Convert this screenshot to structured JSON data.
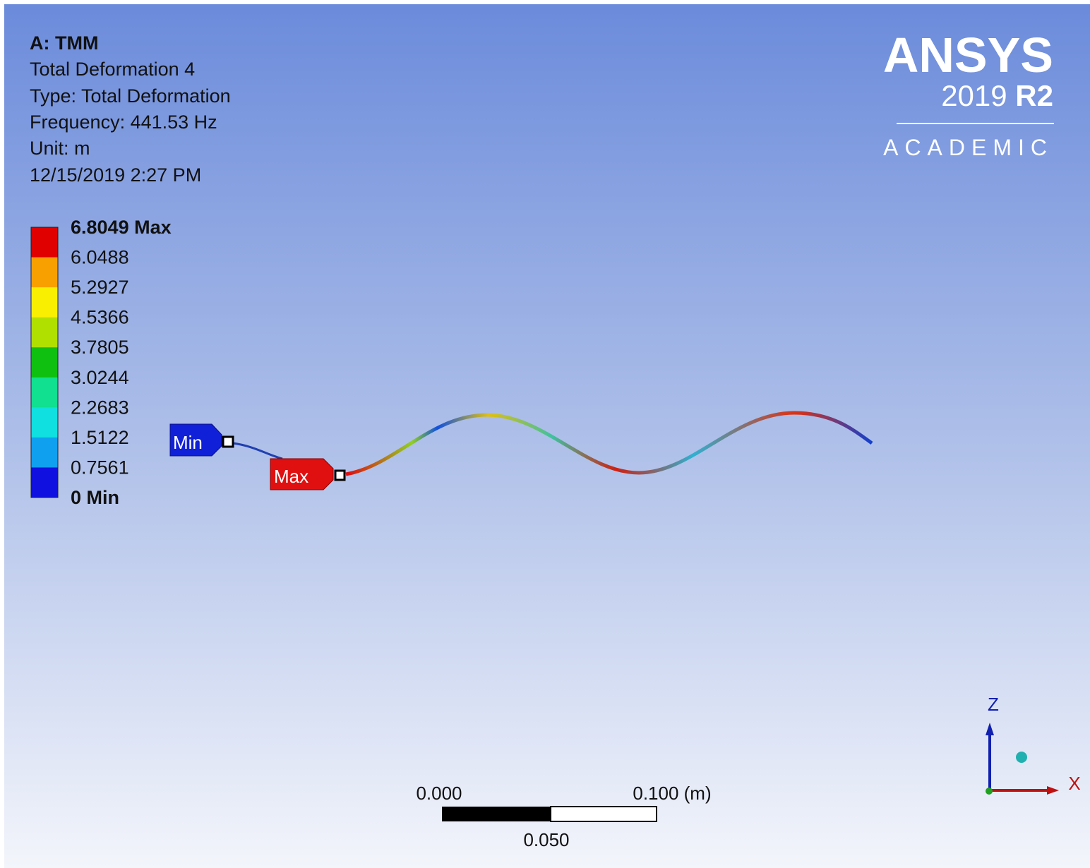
{
  "header": {
    "title": "A: TMM",
    "lines": [
      "Total Deformation 4",
      "Type: Total Deformation",
      "Frequency: 441.53 Hz",
      "Unit: m",
      "12/15/2019 2:27 PM"
    ]
  },
  "logo": {
    "brand": "ANSYS",
    "version": "2019",
    "release": "R2",
    "edition": "ACADEMIC"
  },
  "legend": {
    "labels": [
      "6.8049 Max",
      "6.0488",
      "5.2927",
      "4.5366",
      "3.7805",
      "3.0244",
      "2.2683",
      "1.5122",
      "0.7561",
      "0 Min"
    ]
  },
  "probes": {
    "min": "Min",
    "max": "Max"
  },
  "scale_bar": {
    "start": "0.000",
    "middle": "0.050",
    "end": "0.100 (m)"
  },
  "triad": {
    "z": "Z",
    "x": "X"
  }
}
